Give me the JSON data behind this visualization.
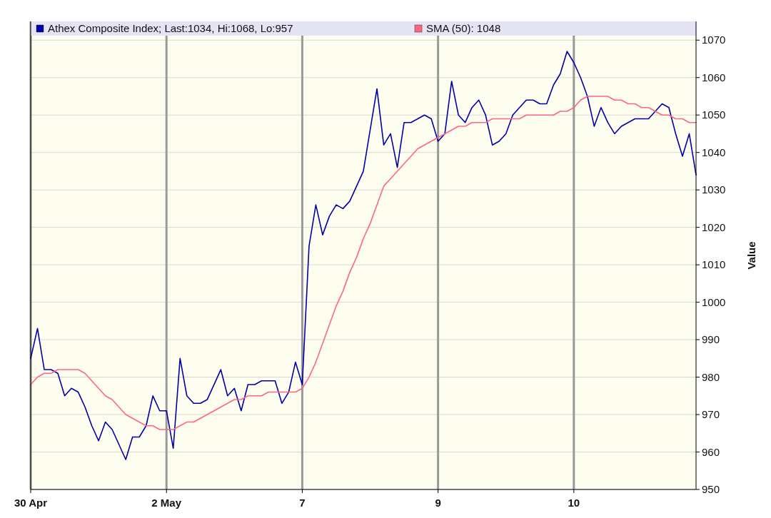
{
  "chart_data": {
    "type": "line",
    "ylabel": "Value",
    "categories": [
      "30 Apr",
      null,
      null,
      null,
      null,
      null,
      null,
      null,
      null,
      null,
      null,
      null,
      null,
      null,
      null,
      null,
      null,
      null,
      null,
      null,
      "2 May",
      null,
      null,
      null,
      null,
      null,
      null,
      null,
      null,
      null,
      null,
      null,
      null,
      null,
      null,
      null,
      null,
      null,
      null,
      null,
      "7",
      null,
      null,
      null,
      null,
      null,
      null,
      null,
      null,
      null,
      null,
      null,
      null,
      null,
      null,
      null,
      null,
      null,
      null,
      null,
      "9",
      null,
      null,
      null,
      null,
      null,
      null,
      null,
      null,
      null,
      null,
      null,
      null,
      null,
      null,
      null,
      null,
      null,
      null,
      null,
      "10",
      null,
      null,
      null,
      null,
      null,
      null,
      null,
      null,
      null,
      null,
      null,
      null,
      null,
      null,
      null,
      null,
      null,
      null
    ],
    "ylim": [
      950,
      1075
    ],
    "yticks": [
      950,
      960,
      970,
      980,
      990,
      1000,
      1010,
      1020,
      1030,
      1040,
      1050,
      1060,
      1070
    ],
    "grid": true,
    "legend": "top",
    "marker": "none",
    "line_style": "solid",
    "series": [
      {
        "name": "Athex Composite Index; Last:1034, Hi:1068, Lo:957",
        "color": "#0000aa",
        "values": [
          985,
          993,
          982,
          982,
          981,
          975,
          977,
          976,
          972,
          967,
          963,
          968,
          966,
          962,
          958,
          964,
          964,
          967,
          975,
          971,
          971,
          961,
          985,
          975,
          973,
          973,
          974,
          978,
          982,
          975,
          977,
          971,
          978,
          978,
          979,
          979,
          979,
          973,
          976,
          984,
          978,
          1015,
          1026,
          1018,
          1023,
          1026,
          1025,
          1027,
          1031,
          1035,
          1046,
          1057,
          1042,
          1045,
          1036,
          1048,
          1048,
          1049,
          1050,
          1049,
          1043,
          1045,
          1059,
          1050,
          1048,
          1052,
          1054,
          1050,
          1042,
          1043,
          1045,
          1050,
          1052,
          1054,
          1054,
          1053,
          1053,
          1058,
          1061,
          1067,
          1064,
          1060,
          1055,
          1047,
          1052,
          1048,
          1045,
          1047,
          1048,
          1049,
          1049,
          1049,
          1051,
          1053,
          1052,
          1045,
          1039,
          1045,
          1034
        ]
      },
      {
        "name": "SMA (50): 1048",
        "color": "#ff6680",
        "values": [
          978,
          980,
          981,
          981,
          982,
          982,
          982,
          982,
          981,
          979,
          977,
          975,
          974,
          972,
          970,
          969,
          968,
          967,
          967,
          966,
          966,
          966,
          967,
          968,
          968,
          969,
          970,
          971,
          972,
          973,
          974,
          974,
          975,
          975,
          975,
          976,
          976,
          976,
          976,
          976,
          977,
          980,
          984,
          989,
          994,
          999,
          1003,
          1008,
          1012,
          1017,
          1021,
          1026,
          1031,
          1033,
          1035,
          1037,
          1039,
          1041,
          1042,
          1043,
          1044,
          1045,
          1046,
          1047,
          1047,
          1048,
          1048,
          1048,
          1049,
          1049,
          1049,
          1049,
          1049,
          1050,
          1050,
          1050,
          1050,
          1050,
          1051,
          1051,
          1052,
          1054,
          1055,
          1055,
          1055,
          1055,
          1054,
          1054,
          1053,
          1053,
          1052,
          1052,
          1051,
          1050,
          1050,
          1049,
          1049,
          1048,
          1048
        ]
      }
    ]
  }
}
